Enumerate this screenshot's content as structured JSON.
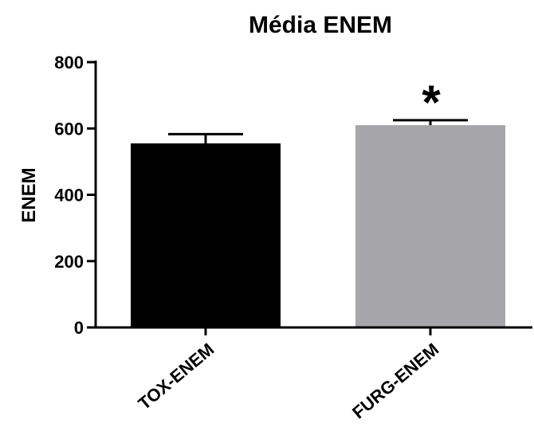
{
  "chart_data": {
    "type": "bar",
    "title": "Média ENEM",
    "xlabel": "",
    "ylabel": "ENEM",
    "ylim": [
      0,
      800
    ],
    "yticks": [
      0,
      200,
      400,
      600,
      800
    ],
    "categories": [
      "TOX-ENEM",
      "FURG-ENEM"
    ],
    "values": [
      555,
      610
    ],
    "error_upper": [
      583,
      625
    ],
    "colors": [
      "#000000",
      "#a6a6aa"
    ],
    "annotations": [
      {
        "category": "FURG-ENEM",
        "text": "*"
      }
    ],
    "grid": false,
    "legend": "none"
  }
}
